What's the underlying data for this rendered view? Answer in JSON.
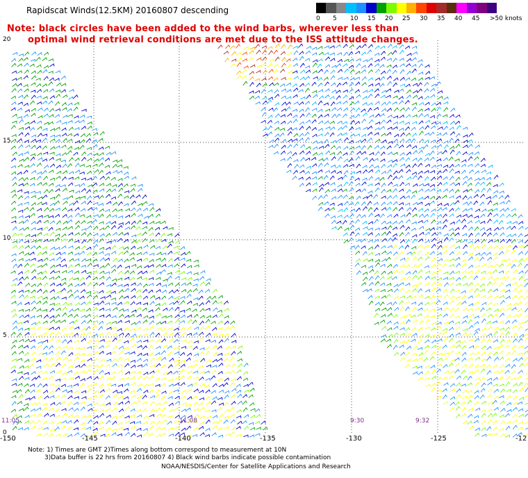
{
  "header": {
    "title": "Rapidscat Winds(12.5KM) 20160807 descending",
    "note_line1": "Note: black circles have been added to the wind barbs, wherever less than",
    "note_line2": "optimal wind retrieval conditions are met due to the ISS attitude changes."
  },
  "legend": {
    "colors": [
      "#000000",
      "#555555",
      "#888888",
      "#00bfff",
      "#1e90ff",
      "#0000cd",
      "#00a000",
      "#7cfc00",
      "#ffff00",
      "#ffb000",
      "#ff4500",
      "#e00000",
      "#a52a2a",
      "#5a2d0c",
      "#ff00ff",
      "#9400d3",
      "#800080",
      "#3c0080"
    ],
    "labels": [
      "0",
      "5",
      "10",
      "15",
      "20",
      "25",
      "30",
      "35",
      "40",
      "45",
      ">50 knots"
    ]
  },
  "axes": {
    "y_ticks": [
      "20",
      "15",
      "10",
      "5",
      "0"
    ],
    "x_ticks": [
      "-150",
      "-145",
      "-140",
      "-135",
      "-130",
      "-125",
      "-12"
    ]
  },
  "times": [
    "11:05",
    "11:08",
    "9:30",
    "9:32"
  ],
  "footer": {
    "line1": "Note: 1) Times are GMT 2)Times along bottom correspond to measurement at 10N",
    "line2": "3)Data buffer is 22 hrs from 20160807 4) Black wind barbs indicate possible contamination",
    "line3": "NOAA/NESDIS/Center for Satellite Applications and Research"
  },
  "chart_data": {
    "type": "map",
    "lon_range": [
      -150,
      -120
    ],
    "lat_range": [
      0,
      20
    ],
    "grid": true,
    "wind_speed_legend_knots": [
      0,
      5,
      10,
      15,
      20,
      25,
      30,
      35,
      40,
      45,
      50
    ]
  }
}
